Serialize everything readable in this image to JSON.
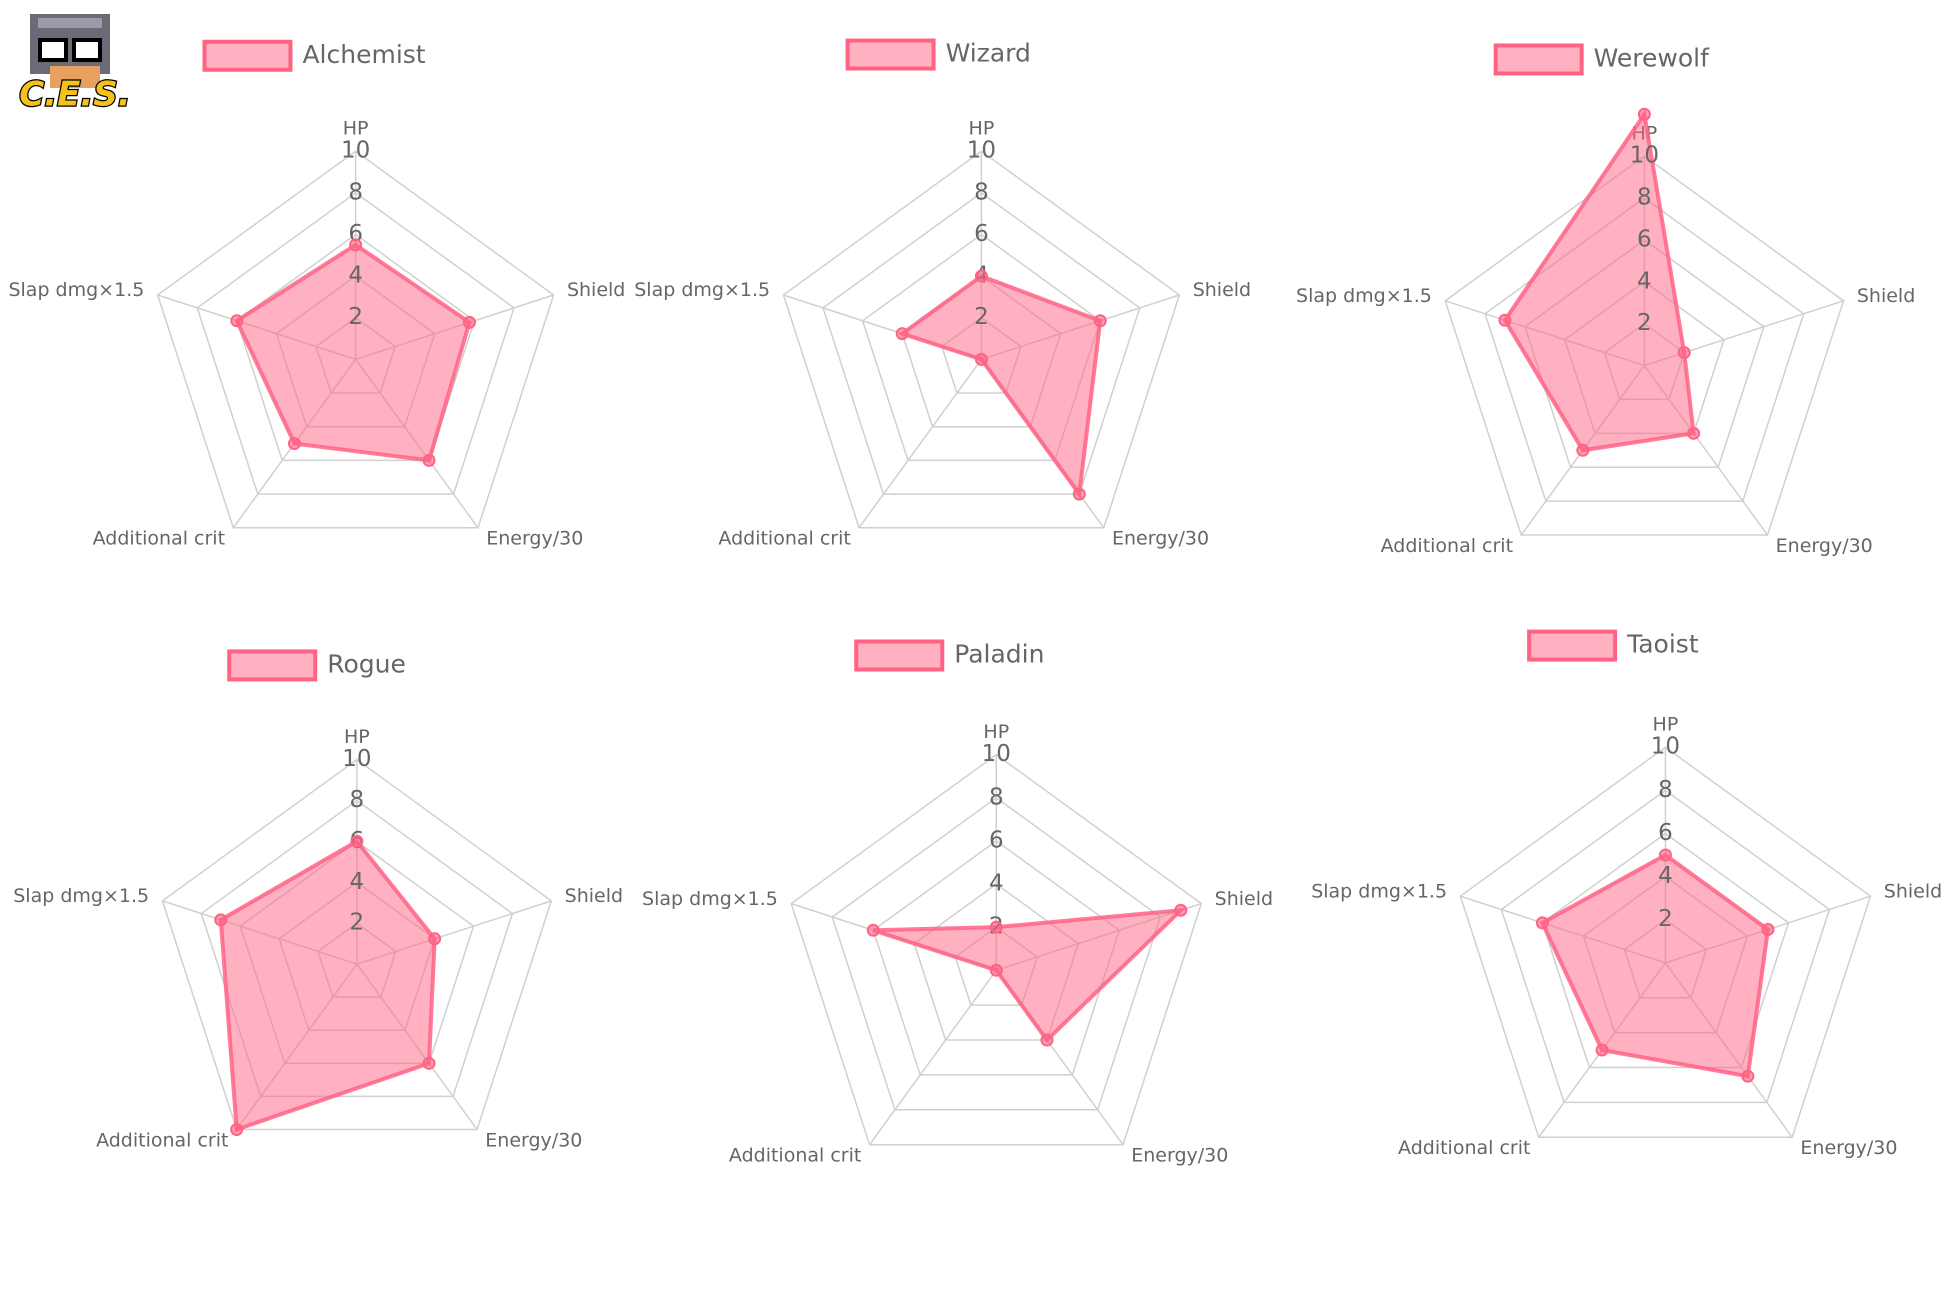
{
  "logo": {
    "text": "C.E.S."
  },
  "chart_data": [
    {
      "type": "radar",
      "categories": [
        "HP",
        "Shield",
        "Energy/30",
        "Additional crit",
        "Slap dmg×1.5"
      ],
      "series": [
        {
          "name": "Alchemist",
          "color": "#ff6384",
          "values": [
            5.5,
            5.75,
            6,
            5,
            6
          ]
        }
      ],
      "rlim": [
        0,
        10
      ],
      "rticks": [
        2,
        4,
        6,
        8,
        10
      ]
    },
    {
      "type": "radar",
      "categories": [
        "HP",
        "Shield",
        "Energy/30",
        "Additional crit",
        "Slap dmg×1.5"
      ],
      "series": [
        {
          "name": "Wizard",
          "color": "#ff6384",
          "values": [
            4,
            6,
            8,
            0,
            4
          ]
        }
      ],
      "rlim": [
        0,
        10
      ],
      "rticks": [
        2,
        4,
        6,
        8,
        10
      ]
    },
    {
      "type": "radar",
      "categories": [
        "HP",
        "Shield",
        "Energy/30",
        "Additional crit",
        "Slap dmg×1.5"
      ],
      "series": [
        {
          "name": "Werewolf",
          "color": "#ff6384",
          "values": [
            12,
            2,
            4,
            5,
            7
          ]
        }
      ],
      "rlim": [
        0,
        10
      ],
      "rticks": [
        2,
        4,
        6,
        8,
        10
      ]
    },
    {
      "type": "radar",
      "categories": [
        "HP",
        "Shield",
        "Energy/30",
        "Additional crit",
        "Slap dmg×1.5"
      ],
      "series": [
        {
          "name": "Rogue",
          "color": "#ff6384",
          "values": [
            6,
            4,
            6,
            10,
            7
          ]
        }
      ],
      "rlim": [
        0,
        10
      ],
      "rticks": [
        2,
        4,
        6,
        8,
        10
      ]
    },
    {
      "type": "radar",
      "categories": [
        "HP",
        "Shield",
        "Energy/30",
        "Additional crit",
        "Slap dmg×1.5"
      ],
      "series": [
        {
          "name": "Paladin",
          "color": "#ff6384",
          "values": [
            2,
            9,
            4,
            0,
            6
          ]
        }
      ],
      "rlim": [
        0,
        10
      ],
      "rticks": [
        2,
        4,
        6,
        8,
        10
      ]
    },
    {
      "type": "radar",
      "categories": [
        "HP",
        "Shield",
        "Energy/30",
        "Additional crit",
        "Slap dmg×1.5"
      ],
      "series": [
        {
          "name": "Taoist",
          "color": "#ff6384",
          "values": [
            5,
            5,
            6.5,
            5,
            6
          ]
        }
      ],
      "rlim": [
        0,
        10
      ],
      "rticks": [
        2,
        4,
        6,
        8,
        10
      ]
    }
  ]
}
